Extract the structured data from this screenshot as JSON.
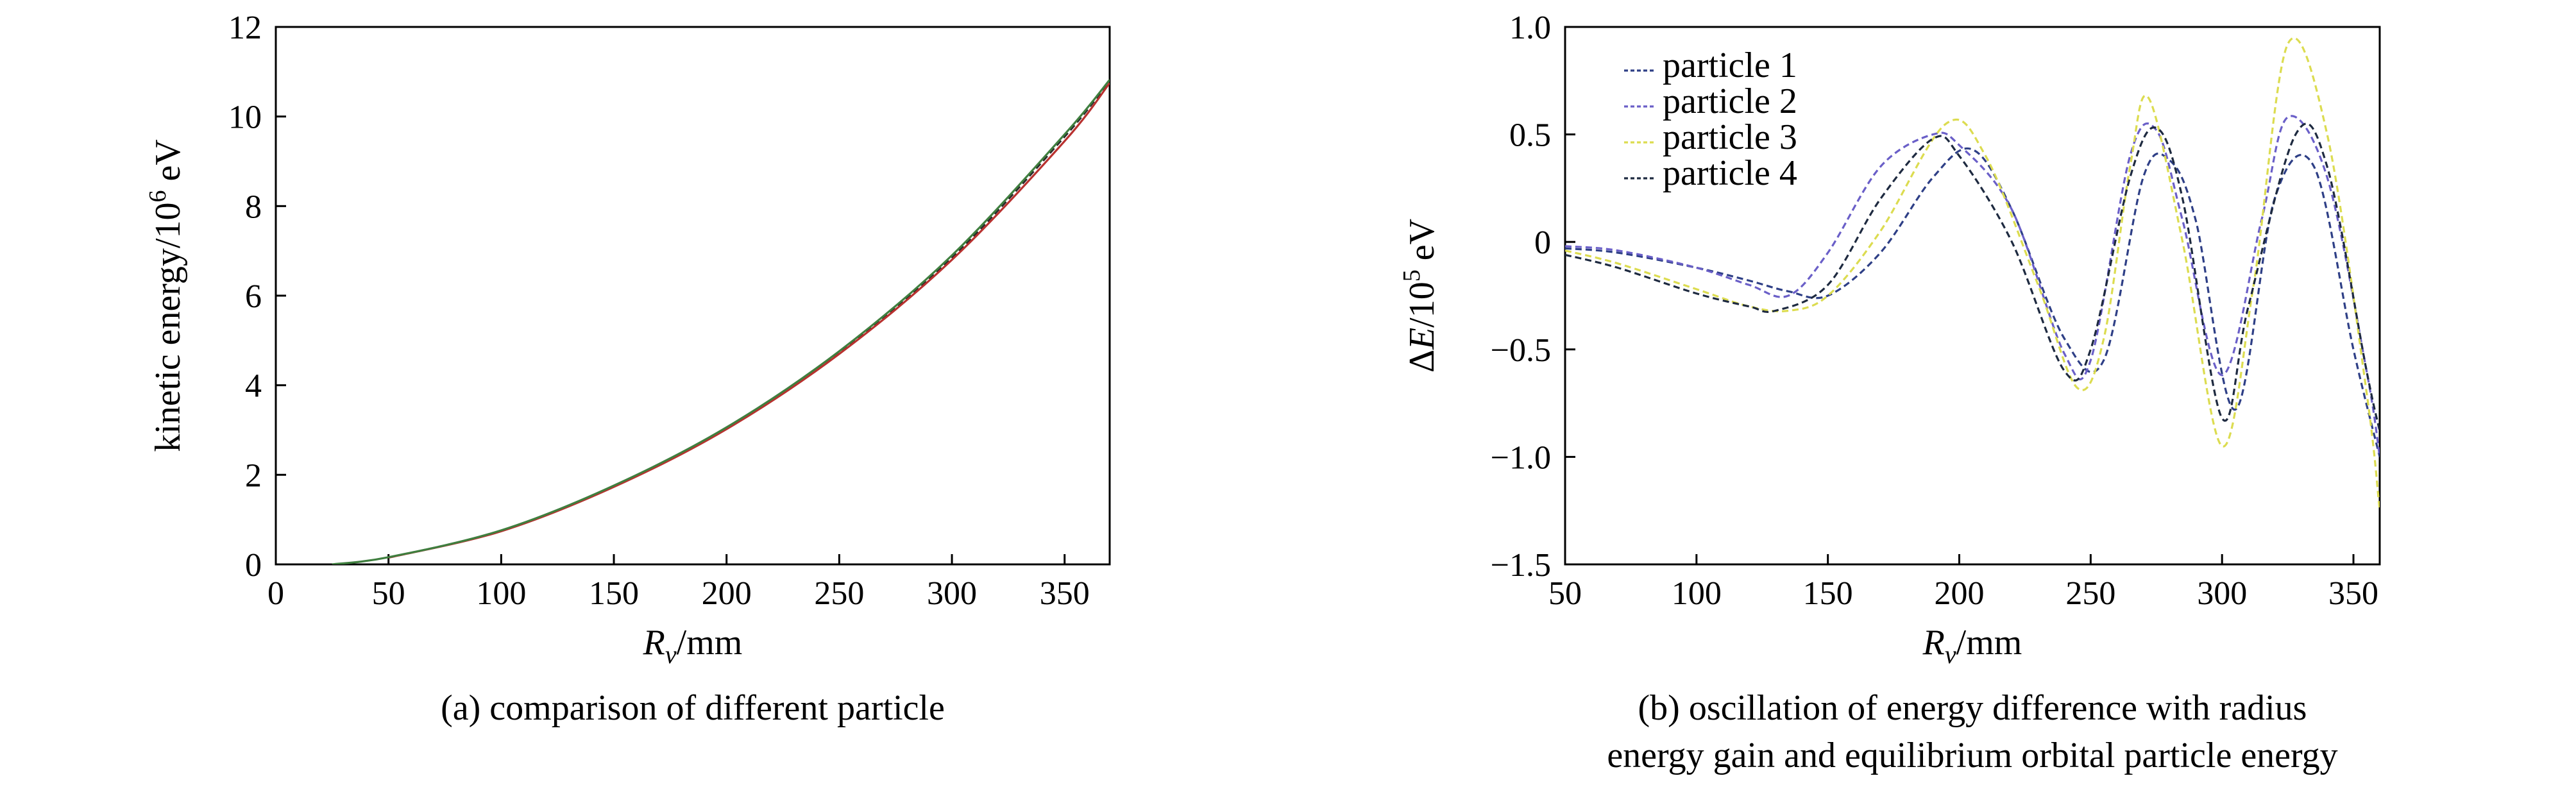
{
  "chart_data": [
    {
      "type": "line",
      "caption": "(a) comparison of different particle",
      "xlabel": {
        "var": "R",
        "sub": "v",
        "unit": "/mm"
      },
      "ylabel": {
        "text": "kinetic energy/10",
        "sup": "6",
        "unit": " eV"
      },
      "xlim": [
        0,
        370
      ],
      "ylim": [
        0,
        12
      ],
      "xticks": [
        0,
        50,
        100,
        150,
        200,
        250,
        300,
        350
      ],
      "yticks": [
        0,
        2,
        4,
        6,
        8,
        10,
        12
      ],
      "grid": false,
      "series": [
        {
          "color": "#2a2a2a",
          "dashed": true,
          "x": [
            50,
            100,
            150,
            200,
            250,
            300,
            350,
            370
          ],
          "y": [
            0.15,
            0.75,
            1.75,
            3.05,
            4.75,
            6.85,
            9.55,
            10.8
          ]
        },
        {
          "color": "#b8312f",
          "dashed": false,
          "x": [
            50,
            100,
            150,
            200,
            250,
            300,
            350,
            370
          ],
          "y": [
            0.15,
            0.74,
            1.73,
            3.02,
            4.7,
            6.8,
            9.45,
            10.75
          ]
        },
        {
          "color": "#3f7f3f",
          "dashed": false,
          "x": [
            25,
            50,
            100,
            150,
            200,
            250,
            300,
            350,
            370
          ],
          "y": [
            0.0,
            0.16,
            0.76,
            1.76,
            3.06,
            4.76,
            6.9,
            9.6,
            10.82
          ]
        }
      ]
    },
    {
      "type": "line",
      "caption_lines": [
        "(b) oscillation of energy difference with radius",
        "energy gain and equilibrium orbital particle energy"
      ],
      "xlabel": {
        "var": "R",
        "sub": "v",
        "unit": "/mm"
      },
      "ylabel": {
        "prefix": "Δ",
        "var": "E",
        "text": "/10",
        "sup": "5",
        "unit": " eV"
      },
      "xlim": [
        50,
        360
      ],
      "ylim": [
        -1.5,
        1.0
      ],
      "xticks": [
        50,
        100,
        150,
        200,
        250,
        300,
        350
      ],
      "yticks": [
        -1.5,
        -1.0,
        -0.5,
        0,
        0.5,
        1.0
      ],
      "ytick_labels": [
        "−1.5",
        "−1.0",
        "−0.5",
        "0",
        "0.5",
        "1.0"
      ],
      "grid": false,
      "legend_position": "top-left",
      "series": [
        {
          "name": "particle 1",
          "color": "#2e3f86",
          "x": [
            50,
            70,
            100,
            120,
            135,
            150,
            170,
            190,
            205,
            220,
            240,
            255,
            270,
            280,
            290,
            305,
            320,
            335,
            350,
            360
          ],
          "y": [
            -0.03,
            -0.05,
            -0.12,
            -0.18,
            -0.23,
            -0.25,
            -0.05,
            0.3,
            0.43,
            0.15,
            -0.45,
            -0.55,
            0.3,
            0.38,
            0.1,
            -0.78,
            0.2,
            0.35,
            -0.5,
            -1.0
          ]
        },
        {
          "name": "particle 2",
          "color": "#6a5fc8",
          "x": [
            50,
            70,
            100,
            120,
            135,
            150,
            170,
            190,
            200,
            220,
            240,
            250,
            265,
            275,
            285,
            300,
            315,
            325,
            340,
            355,
            360
          ],
          "y": [
            -0.02,
            -0.04,
            -0.12,
            -0.2,
            -0.25,
            -0.05,
            0.35,
            0.5,
            0.45,
            0.15,
            -0.52,
            -0.55,
            0.4,
            0.52,
            0.1,
            -0.62,
            0.1,
            0.58,
            0.3,
            -0.6,
            -1.0
          ]
        },
        {
          "name": "particle 3",
          "color": "#dcdc50",
          "x": [
            50,
            70,
            100,
            120,
            135,
            150,
            170,
            195,
            210,
            230,
            245,
            255,
            265,
            272,
            285,
            300,
            312,
            325,
            340,
            355,
            360
          ],
          "y": [
            -0.04,
            -0.1,
            -0.22,
            -0.3,
            -0.32,
            -0.25,
            0.05,
            0.55,
            0.4,
            -0.2,
            -0.68,
            -0.45,
            0.35,
            0.67,
            0.0,
            -0.95,
            -0.2,
            0.92,
            0.5,
            -0.7,
            -1.25
          ]
        },
        {
          "name": "particle 4",
          "color": "#1e2a40",
          "x": [
            50,
            70,
            100,
            120,
            130,
            150,
            170,
            190,
            200,
            220,
            240,
            250,
            265,
            275,
            285,
            300,
            310,
            328,
            340,
            355,
            360
          ],
          "y": [
            -0.06,
            -0.12,
            -0.24,
            -0.3,
            -0.32,
            -0.2,
            0.2,
            0.48,
            0.4,
            0.0,
            -0.6,
            -0.5,
            0.3,
            0.53,
            0.2,
            -0.82,
            -0.3,
            0.5,
            0.35,
            -0.6,
            -0.88
          ]
        }
      ]
    }
  ]
}
